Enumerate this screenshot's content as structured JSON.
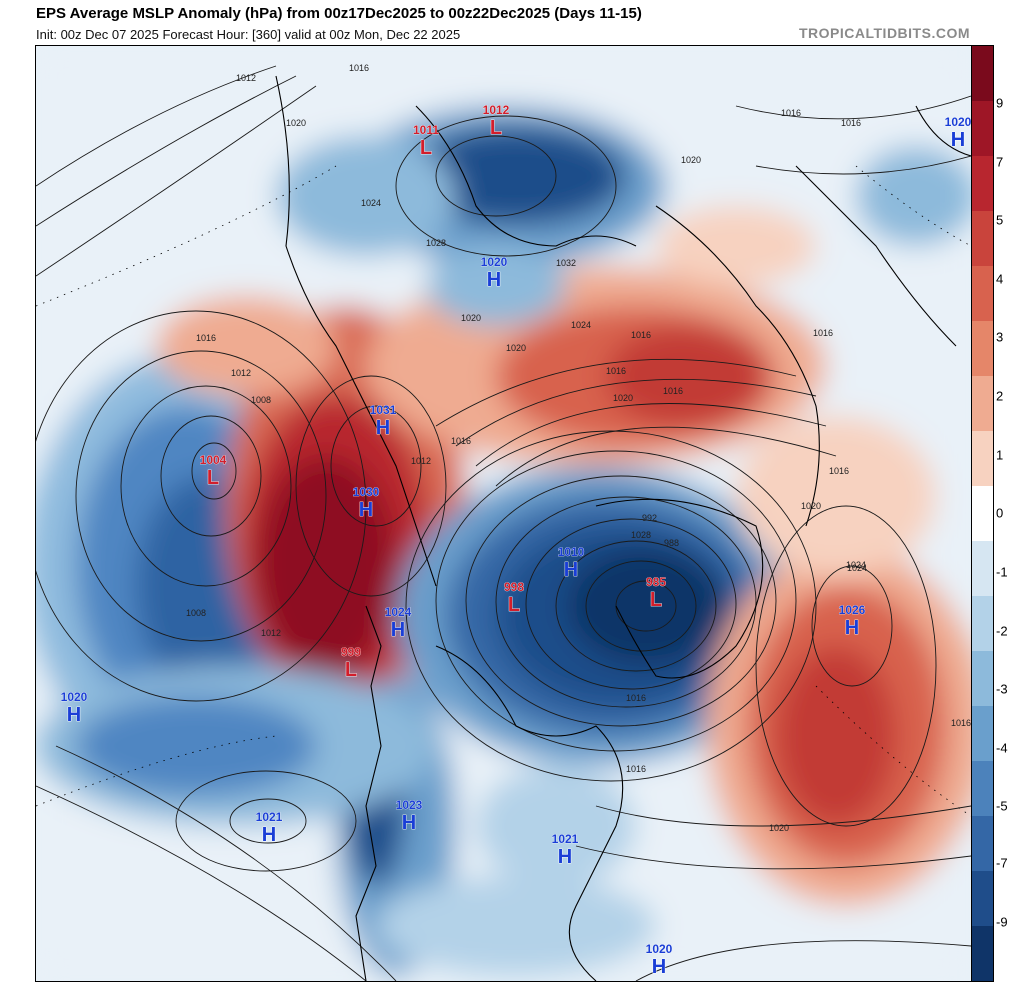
{
  "header": {
    "title": "EPS Average MSLP Anomaly (hPa) from 00z17Dec2025 to 00z22Dec2025 (Days 11-15)",
    "subtitle": "Init: 00z Dec 07 2025   Forecast Hour: [360]   valid at 00z Mon, Dec 22 2025",
    "credit": "TROPICALTIDBITS.COM"
  },
  "colorbar": {
    "labels": [
      "9",
      "7",
      "5",
      "4",
      "3",
      "2",
      "1",
      "0",
      "-1",
      "-2",
      "-3",
      "-4",
      "-5",
      "-7",
      "-9"
    ],
    "colors": [
      "#7a0a1c",
      "#9e1626",
      "#b8262f",
      "#c9443c",
      "#d8624e",
      "#e58669",
      "#efab91",
      "#f7d2c0",
      "#ffffff",
      "#d6e6f2",
      "#b3d2e8",
      "#8dbadb",
      "#6a9fcc",
      "#4c82bb",
      "#3467a6",
      "#1f4d8a",
      "#0f3468"
    ]
  },
  "map": {
    "pressure_centers": [
      {
        "type": "L",
        "value": "1011",
        "color": "#d21e2b"
      },
      {
        "type": "L",
        "value": "1012",
        "color": "#d21e2b"
      },
      {
        "type": "H",
        "value": "1020",
        "color": "#1a3ed6"
      },
      {
        "type": "H",
        "value": "1031",
        "color": "#1a3ed6"
      },
      {
        "type": "L",
        "value": "1004",
        "color": "#d21e2b"
      },
      {
        "type": "H",
        "value": "1030",
        "color": "#1a3ed6"
      },
      {
        "type": "H",
        "value": "1024",
        "color": "#1a3ed6"
      },
      {
        "type": "L",
        "value": "999",
        "color": "#d21e2b"
      },
      {
        "type": "H",
        "value": "1010",
        "color": "#1a3ed6"
      },
      {
        "type": "L",
        "value": "998",
        "color": "#d21e2b"
      },
      {
        "type": "L",
        "value": "985",
        "color": "#d21e2b"
      },
      {
        "type": "H",
        "value": "1026",
        "color": "#1a3ed6"
      },
      {
        "type": "H",
        "value": "1020",
        "color": "#1a3ed6"
      },
      {
        "type": "H",
        "value": "1021",
        "color": "#1a3ed6"
      },
      {
        "type": "H",
        "value": "1023",
        "color": "#1a3ed6"
      },
      {
        "type": "H",
        "value": "1021",
        "color": "#1a3ed6"
      },
      {
        "type": "H",
        "value": "1020",
        "color": "#1a3ed6"
      },
      {
        "type": "H",
        "value": "1020",
        "color": "#1a3ed6"
      }
    ],
    "isobar_labels": [
      "1012",
      "1016",
      "1020",
      "1024",
      "1028",
      "1032",
      "1016",
      "1012",
      "1008",
      "1008",
      "1012",
      "1016",
      "1024",
      "1020",
      "1016",
      "1020",
      "1016",
      "1016",
      "1012",
      "1020",
      "1020",
      "1016",
      "1016",
      "1016",
      "1024",
      "1016",
      "1020",
      "1028",
      "1024",
      "1016",
      "1020",
      "992",
      "988",
      "1016",
      "1016"
    ]
  }
}
